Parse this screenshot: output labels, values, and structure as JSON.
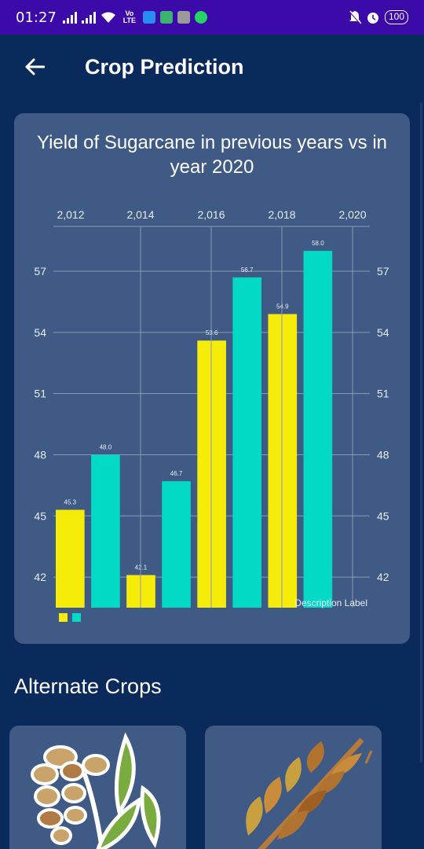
{
  "status_bar": {
    "time": "01:27",
    "volte": "Vo LTE",
    "battery": "100"
  },
  "app_bar": {
    "back_icon": "arrow-left-icon",
    "title": "Crop Prediction"
  },
  "chart_data": {
    "type": "bar",
    "title": "Yield of Sugarcane in previous years vs in year 2020",
    "x_ticks": [
      "2,012",
      "2,014",
      "2,016",
      "2,018",
      "2,020"
    ],
    "y_ticks": [
      "42",
      "45",
      "48",
      "51",
      "54",
      "57"
    ],
    "ylim": [
      40.5,
      59.2
    ],
    "grid": true,
    "description_label": "Description Label",
    "legend_colors": [
      "#f6ec0a",
      "#03dac5"
    ],
    "bars": [
      {
        "color": "#f6ec0a",
        "value": 45.3,
        "label": "45.3"
      },
      {
        "color": "#03dac5",
        "value": 48.0,
        "label": "48.0"
      },
      {
        "color": "#f6ec0a",
        "value": 42.1,
        "label": "42.1"
      },
      {
        "color": "#03dac5",
        "value": 46.7,
        "label": "46.7"
      },
      {
        "color": "#f6ec0a",
        "value": 53.6,
        "label": "53.6"
      },
      {
        "color": "#03dac5",
        "value": 56.7,
        "label": "56.7"
      },
      {
        "color": "#f6ec0a",
        "value": 54.9,
        "label": "54.9"
      },
      {
        "color": "#03dac5",
        "value": 58.0,
        "label": "58.0"
      }
    ]
  },
  "alternate": {
    "title": "Alternate Crops",
    "crops": [
      {
        "icon": "wheat-sprout-icon"
      },
      {
        "icon": "wheat-ear-icon"
      }
    ]
  }
}
